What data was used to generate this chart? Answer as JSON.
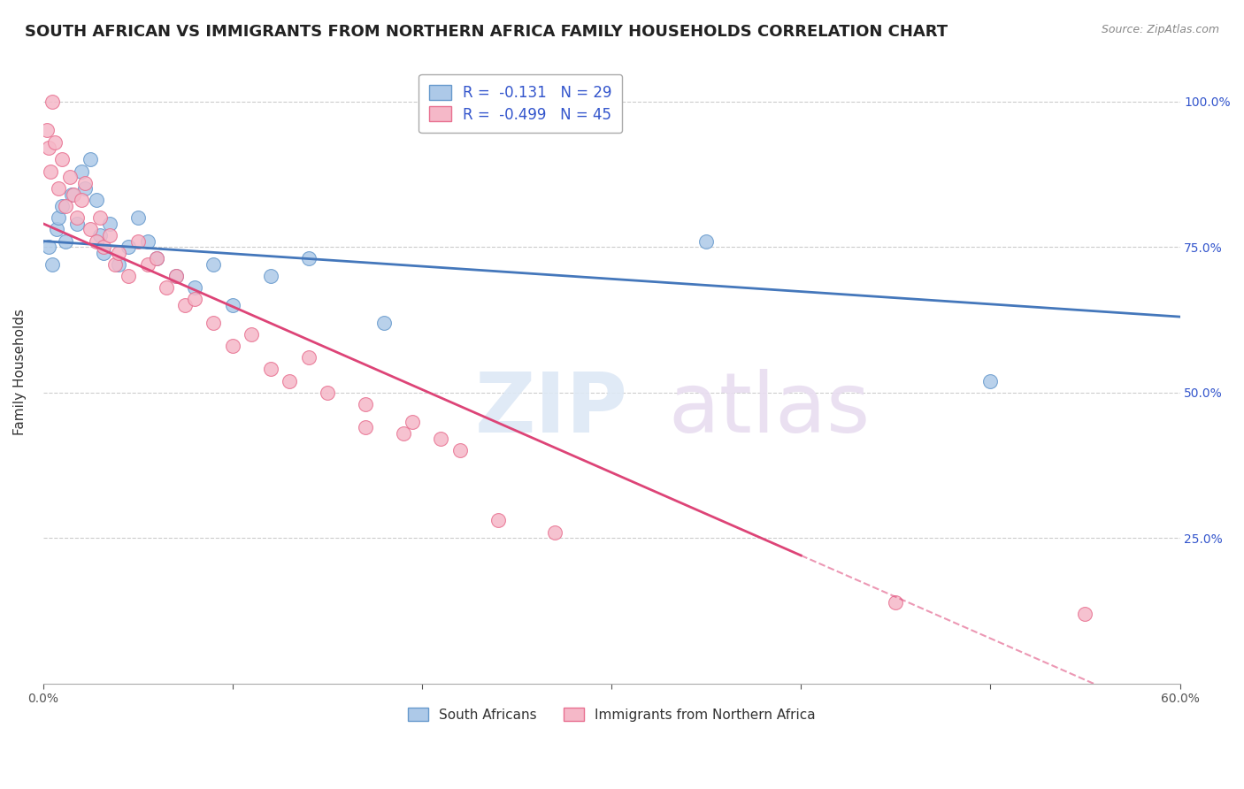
{
  "title": "SOUTH AFRICAN VS IMMIGRANTS FROM NORTHERN AFRICA FAMILY HOUSEHOLDS CORRELATION CHART",
  "source": "Source: ZipAtlas.com",
  "ylabel": "Family Households",
  "series": [
    {
      "name": "South Africans",
      "color": "#adc9e8",
      "edge_color": "#6699cc",
      "R": -0.131,
      "N": 29,
      "x": [
        0.3,
        0.5,
        0.7,
        0.8,
        1.0,
        1.2,
        1.5,
        1.8,
        2.0,
        2.2,
        2.5,
        2.8,
        3.0,
        3.2,
        3.5,
        4.0,
        4.5,
        5.0,
        5.5,
        6.0,
        7.0,
        8.0,
        9.0,
        10.0,
        12.0,
        14.0,
        18.0,
        35.0,
        50.0
      ],
      "y": [
        75.0,
        72.0,
        78.0,
        80.0,
        82.0,
        76.0,
        84.0,
        79.0,
        88.0,
        85.0,
        90.0,
        83.0,
        77.0,
        74.0,
        79.0,
        72.0,
        75.0,
        80.0,
        76.0,
        73.0,
        70.0,
        68.0,
        72.0,
        65.0,
        70.0,
        73.0,
        62.0,
        76.0,
        52.0
      ]
    },
    {
      "name": "Immigrants from Northern Africa",
      "color": "#f5b8c8",
      "edge_color": "#e87090",
      "R": -0.499,
      "N": 45,
      "x": [
        0.2,
        0.3,
        0.4,
        0.5,
        0.6,
        0.8,
        1.0,
        1.2,
        1.4,
        1.6,
        1.8,
        2.0,
        2.2,
        2.5,
        2.8,
        3.0,
        3.2,
        3.5,
        3.8,
        4.0,
        4.5,
        5.0,
        5.5,
        6.0,
        6.5,
        7.0,
        7.5,
        8.0,
        9.0,
        10.0,
        11.0,
        12.0,
        13.0,
        14.0,
        15.0,
        17.0,
        19.0,
        21.0,
        24.0,
        27.0,
        17.0,
        19.5,
        22.0,
        45.0,
        55.0
      ],
      "y": [
        95.0,
        92.0,
        88.0,
        100.0,
        93.0,
        85.0,
        90.0,
        82.0,
        87.0,
        84.0,
        80.0,
        83.0,
        86.0,
        78.0,
        76.0,
        80.0,
        75.0,
        77.0,
        72.0,
        74.0,
        70.0,
        76.0,
        72.0,
        73.0,
        68.0,
        70.0,
        65.0,
        66.0,
        62.0,
        58.0,
        60.0,
        54.0,
        52.0,
        56.0,
        50.0,
        44.0,
        43.0,
        42.0,
        28.0,
        26.0,
        48.0,
        45.0,
        40.0,
        14.0,
        12.0
      ]
    }
  ],
  "xlim": [
    0.0,
    60.0
  ],
  "ylim": [
    0.0,
    107.0
  ],
  "x_ticks": [
    0.0,
    10.0,
    20.0,
    30.0,
    40.0,
    50.0,
    60.0
  ],
  "x_tick_labels": [
    "0.0%",
    "",
    "",
    "",
    "",
    "",
    "60.0%"
  ],
  "y_ticks_right": [
    25.0,
    50.0,
    75.0,
    100.0
  ],
  "y_tick_labels_right": [
    "25.0%",
    "50.0%",
    "75.0%",
    "100.0%"
  ],
  "grid_color": "#cccccc",
  "background_color": "#ffffff",
  "blue_line_color": "#4477bb",
  "pink_line_color": "#dd4477",
  "title_fontsize": 13,
  "axis_fontsize": 11
}
